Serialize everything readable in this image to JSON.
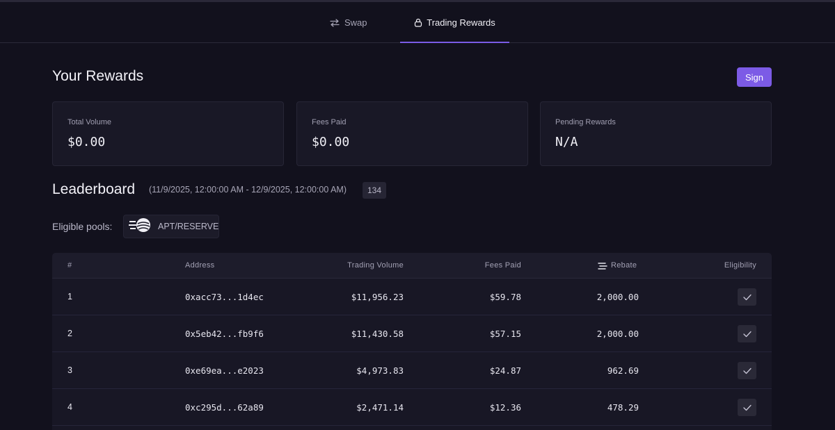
{
  "tabs": [
    {
      "label": "Swap",
      "icon": "swap-arrows-icon"
    },
    {
      "label": "Trading Rewards",
      "icon": "lock-icon",
      "active": true
    }
  ],
  "rewards": {
    "title": "Your Rewards",
    "sign_label": "Sign",
    "cards": [
      {
        "label": "Total Volume",
        "value": "$0.00"
      },
      {
        "label": "Fees Paid",
        "value": "$0.00"
      },
      {
        "label": "Pending Rewards",
        "value": "N/A"
      }
    ]
  },
  "leaderboard": {
    "title": "Leaderboard",
    "range": "(11/9/2025, 12:00:00 AM - 12/9/2025, 12:00:00 AM)",
    "count": "134",
    "eligible_label": "Eligible pools:",
    "pool": "APT/RESERVE",
    "columns": {
      "rank": "#",
      "address": "Address",
      "volume": "Trading Volume",
      "fees": "Fees Paid",
      "rebate": "Rebate",
      "eligibility": "Eligibility"
    },
    "rows": [
      {
        "rank": "1",
        "address": "0xacc73...1d4ec",
        "volume": "$11,956.23",
        "fees": "$59.78",
        "rebate": "2,000.00",
        "eligible": true
      },
      {
        "rank": "2",
        "address": "0x5eb42...fb9f6",
        "volume": "$11,430.58",
        "fees": "$57.15",
        "rebate": "2,000.00",
        "eligible": true
      },
      {
        "rank": "3",
        "address": "0xe69ea...e2023",
        "volume": "$4,973.83",
        "fees": "$24.87",
        "rebate": "962.69",
        "eligible": true
      },
      {
        "rank": "4",
        "address": "0xc295d...62a89",
        "volume": "$2,471.14",
        "fees": "$12.36",
        "rebate": "478.29",
        "eligible": true
      }
    ]
  },
  "colors": {
    "accent": "#7c5be6",
    "background": "#12111d",
    "card": "#191826"
  }
}
